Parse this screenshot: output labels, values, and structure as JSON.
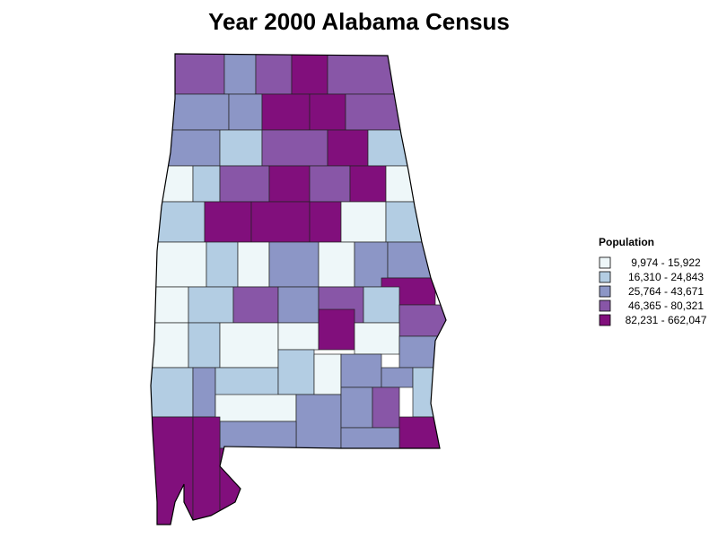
{
  "title": "Year 2000 Alabama Census",
  "legend": {
    "title": "Population",
    "items": [
      {
        "label": "9,974 - 15,922",
        "color": "#eef7f9"
      },
      {
        "label": "16,310 - 24,843",
        "color": "#b3cde3"
      },
      {
        "label": "25,764 - 43,671",
        "color": "#8c96c6"
      },
      {
        "label": "46,365 - 80,321",
        "color": "#8856a7"
      },
      {
        "label": "82,231 - 662,047",
        "color": "#810f7c"
      }
    ]
  }
}
